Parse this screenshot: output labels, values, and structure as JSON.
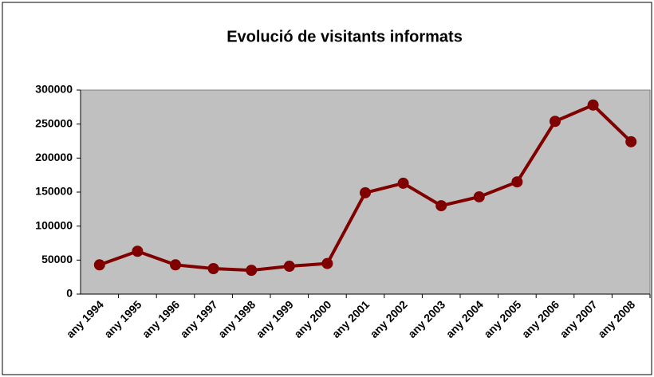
{
  "chart_data": {
    "type": "line",
    "title": "Evolució de visitants informats",
    "categories": [
      "any 1994",
      "any 1995",
      "any 1996",
      "any 1997",
      "any 1998",
      "any 1999",
      "any 2000",
      "any 2001",
      "any 2002",
      "any 2003",
      "any 2004",
      "any 2005",
      "any 2006",
      "any 2007",
      "any 2008"
    ],
    "series": [
      {
        "name": "Visitants informats",
        "color": "#800000",
        "values": [
          43000,
          63000,
          43000,
          37500,
          35000,
          41000,
          45000,
          149000,
          163000,
          130000,
          143000,
          165000,
          254000,
          278000,
          224000
        ]
      }
    ],
    "ylim": [
      0,
      300000
    ],
    "yticks": [
      0,
      50000,
      100000,
      150000,
      200000,
      250000,
      300000
    ],
    "grid": false,
    "plot_background": "#c0c0c0",
    "legend": false
  }
}
